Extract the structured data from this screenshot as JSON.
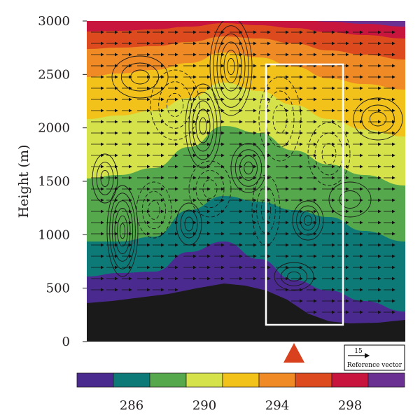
{
  "chart_data": {
    "type": "area",
    "title": "",
    "ylabel": "Height (m)",
    "xlabel": "",
    "ylim": [
      0,
      3000
    ],
    "yticks": [
      0,
      500,
      1000,
      1500,
      2000,
      2500,
      3000
    ],
    "theta_levels": [
      284,
      286,
      288,
      290,
      292,
      294,
      296,
      298,
      300,
      302
    ],
    "band_colors": [
      "#4b2a8f",
      "#0e7a78",
      "#55a84b",
      "#d5e24a",
      "#f2c21a",
      "#f08a24",
      "#dd4a1e",
      "#c8153d",
      "#6a3192"
    ],
    "colorbar_labels": [
      286,
      290,
      294,
      298
    ],
    "terrain_color": "#1a1a1a",
    "reference_vector": {
      "value": 15,
      "label": "Reference vector"
    },
    "marker": {
      "symbol": "triangle",
      "color": "#d8401e"
    },
    "grid": false
  }
}
